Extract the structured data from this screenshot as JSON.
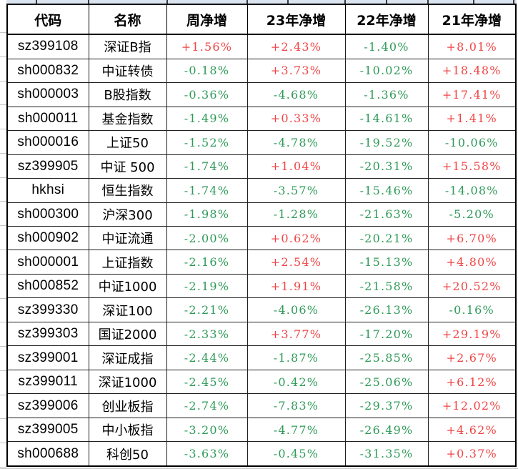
{
  "table": {
    "columns": [
      "代码",
      "名称",
      "周净增",
      "23年净增",
      "22年净增",
      "21年净增"
    ],
    "rows": [
      {
        "code": "sz399108",
        "name": "深证B指",
        "week": "+1.56%",
        "y23": "+2.43%",
        "y22": "-1.40%",
        "y21": "+8.01%"
      },
      {
        "code": "sh000832",
        "name": "中证转债",
        "week": "-0.18%",
        "y23": "+3.73%",
        "y22": "-10.02%",
        "y21": "+18.48%"
      },
      {
        "code": "sh000003",
        "name": "B股指数",
        "week": "-0.36%",
        "y23": "-4.68%",
        "y22": "-1.36%",
        "y21": "+17.41%"
      },
      {
        "code": "sh000011",
        "name": "基金指数",
        "week": "-1.49%",
        "y23": "+0.33%",
        "y22": "-14.61%",
        "y21": "+1.41%"
      },
      {
        "code": "sh000016",
        "name": "上证50",
        "week": "-1.52%",
        "y23": "-4.78%",
        "y22": "-19.52%",
        "y21": "-10.06%"
      },
      {
        "code": "sz399905",
        "name": "中证 500",
        "week": "-1.74%",
        "y23": "+1.04%",
        "y22": "-20.31%",
        "y21": "+15.58%"
      },
      {
        "code": "hkhsi",
        "name": "恒生指数",
        "week": "-1.74%",
        "y23": "-3.57%",
        "y22": "-15.46%",
        "y21": "-14.08%"
      },
      {
        "code": "sh000300",
        "name": "沪深300",
        "week": "-1.98%",
        "y23": "-1.28%",
        "y22": "-21.63%",
        "y21": "-5.20%"
      },
      {
        "code": "sh000902",
        "name": "中证流通",
        "week": "-2.00%",
        "y23": "+0.62%",
        "y22": "-20.21%",
        "y21": "+6.70%"
      },
      {
        "code": "sh000001",
        "name": "上证指数",
        "week": "-2.16%",
        "y23": "+2.54%",
        "y22": "-15.13%",
        "y21": "+4.80%"
      },
      {
        "code": "sh000852",
        "name": "中证1000",
        "week": "-2.19%",
        "y23": "+1.91%",
        "y22": "-21.58%",
        "y21": "+20.52%"
      },
      {
        "code": "sz399330",
        "name": "深证100",
        "week": "-2.21%",
        "y23": "-4.06%",
        "y22": "-26.13%",
        "y21": "-0.16%"
      },
      {
        "code": "sz399303",
        "name": "国证2000",
        "week": "-2.33%",
        "y23": "+3.77%",
        "y22": "-17.20%",
        "y21": "+29.19%"
      },
      {
        "code": "sz399001",
        "name": "深证成指",
        "week": "-2.44%",
        "y23": "-1.87%",
        "y22": "-25.85%",
        "y21": "+2.67%"
      },
      {
        "code": "sz399011",
        "name": "深证1000",
        "week": "-2.45%",
        "y23": "-0.42%",
        "y22": "-25.06%",
        "y21": "+6.12%"
      },
      {
        "code": "sz399006",
        "name": "创业板指",
        "week": "-2.74%",
        "y23": "-7.83%",
        "y22": "-29.37%",
        "y21": "+12.02%"
      },
      {
        "code": "sz399005",
        "name": "中小板指",
        "week": "-3.20%",
        "y23": "-4.77%",
        "y22": "-26.49%",
        "y21": "+4.62%"
      },
      {
        "code": "sh000688",
        "name": "科创50",
        "week": "-3.63%",
        "y23": "-0.45%",
        "y22": "-31.35%",
        "y21": "+0.37%"
      }
    ]
  },
  "colors": {
    "positive": "#f04545",
    "negative": "#2e9a58",
    "grid": "#1f1f1f",
    "header_strip": "#dbe5f1"
  }
}
